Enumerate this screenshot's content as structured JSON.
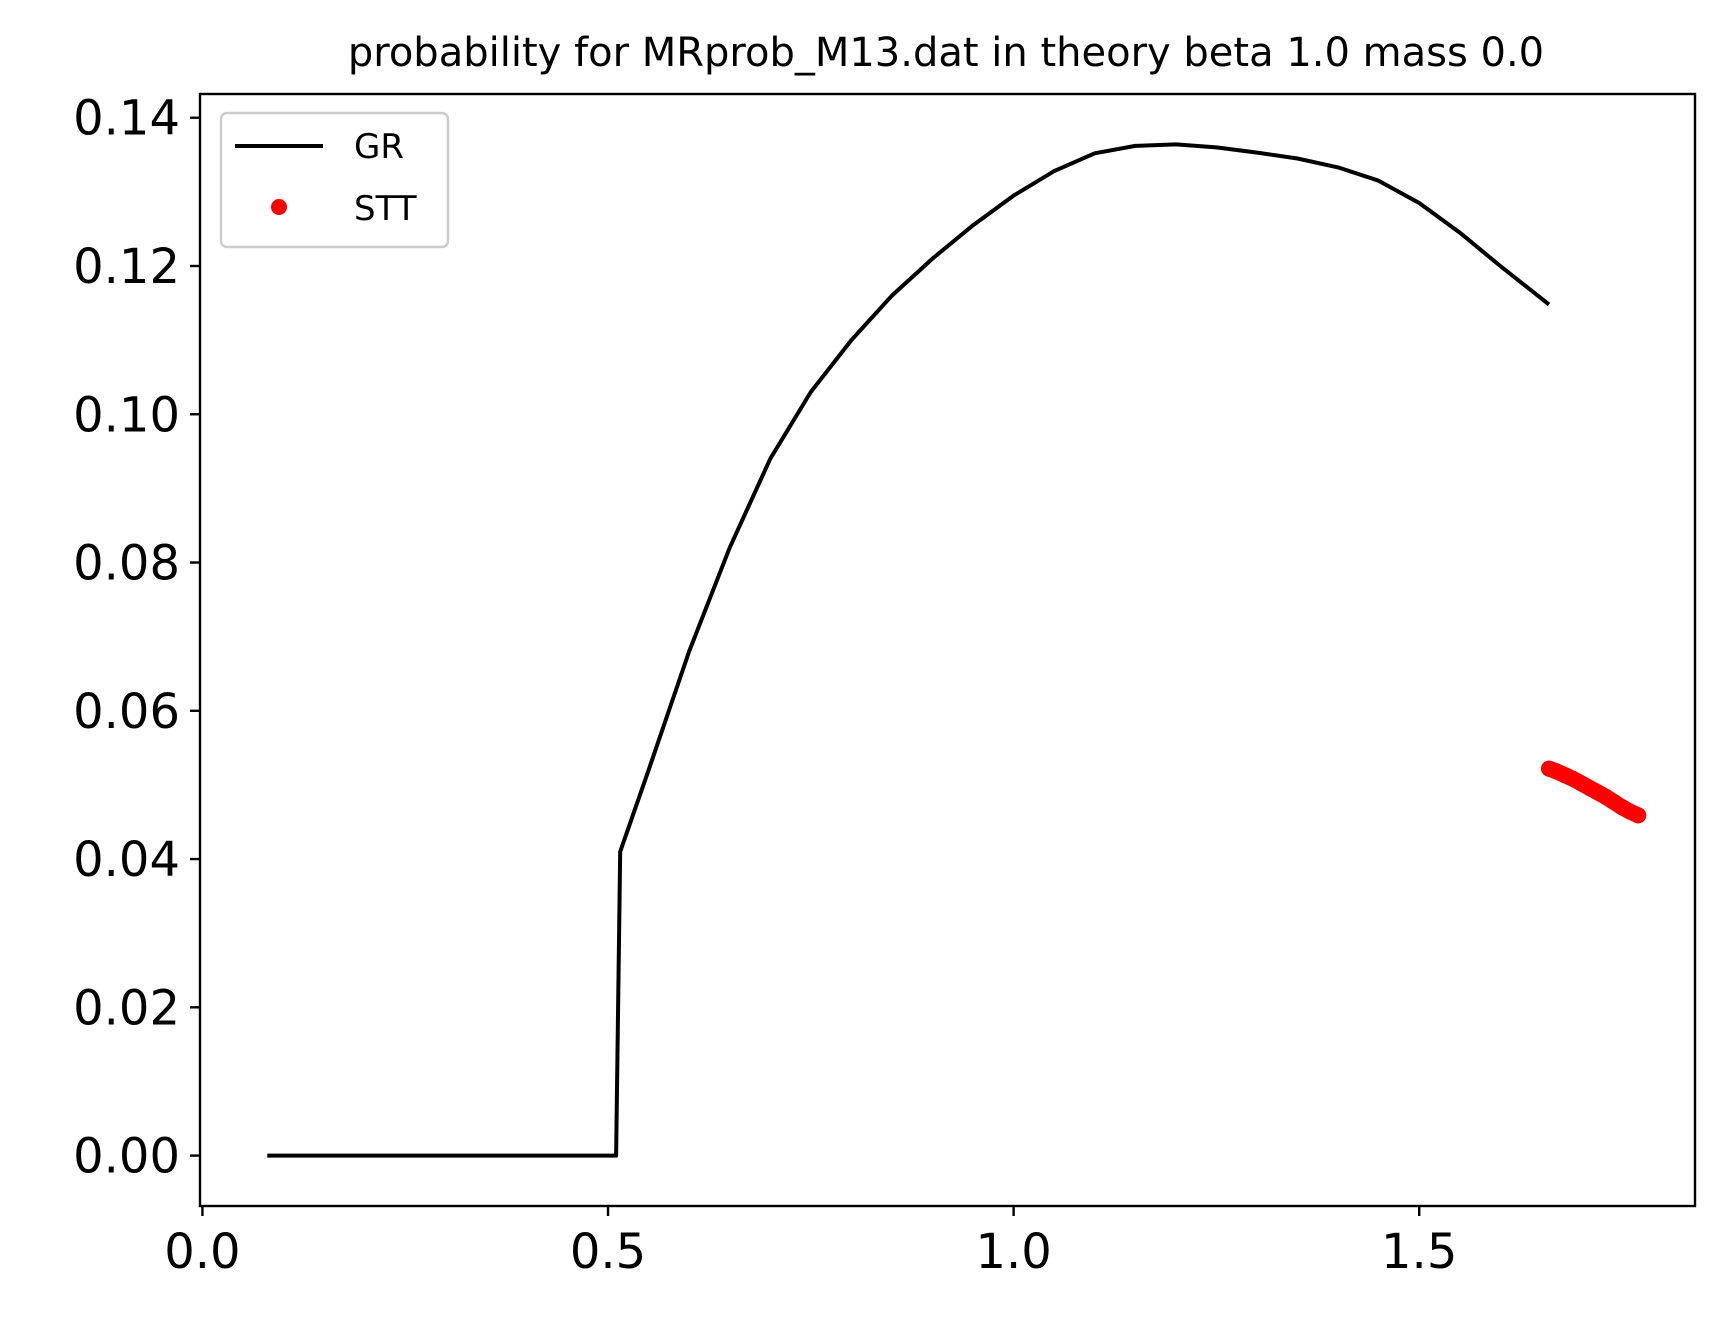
{
  "chart_data": {
    "type": "line",
    "title": "probability for MRprob_M13.dat in theory beta 1.0 mass 0.0",
    "xlabel": "",
    "ylabel": "",
    "xlim": [
      -0.003,
      1.84
    ],
    "ylim": [
      -0.0068,
      0.1432
    ],
    "xticks": [
      0.0,
      0.5,
      1.0,
      1.5
    ],
    "xtick_labels": [
      "0.0",
      "0.5",
      "1.0",
      "1.5"
    ],
    "yticks": [
      0.0,
      0.02,
      0.04,
      0.06,
      0.08,
      0.1,
      0.12,
      0.14
    ],
    "ytick_labels": [
      "0.00",
      "0.02",
      "0.04",
      "0.06",
      "0.08",
      "0.10",
      "0.12",
      "0.14"
    ],
    "grid": false,
    "legend": "top-left",
    "series": [
      {
        "name": "GR",
        "style": "line",
        "color": "#000000",
        "x": [
          0.08,
          0.3,
          0.51,
          0.515,
          0.55,
          0.6,
          0.65,
          0.7,
          0.75,
          0.8,
          0.85,
          0.9,
          0.95,
          1.0,
          1.05,
          1.1,
          1.15,
          1.2,
          1.25,
          1.3,
          1.35,
          1.4,
          1.45,
          1.5,
          1.55,
          1.6,
          1.66
        ],
        "y": [
          0.0,
          0.0,
          0.0,
          0.041,
          0.052,
          0.068,
          0.082,
          0.094,
          0.103,
          0.11,
          0.116,
          0.121,
          0.1255,
          0.1295,
          0.1328,
          0.1352,
          0.1362,
          0.1364,
          0.136,
          0.1353,
          0.1345,
          0.1333,
          0.1315,
          0.1285,
          0.1245,
          0.12,
          0.1148
        ]
      },
      {
        "name": "STT",
        "style": "points",
        "color": "#ff0000",
        "x": [
          1.66,
          1.67,
          1.68,
          1.69,
          1.7,
          1.71,
          1.72,
          1.73,
          1.74,
          1.75,
          1.76,
          1.77
        ],
        "y": [
          0.0522,
          0.0518,
          0.0513,
          0.0508,
          0.0502,
          0.0496,
          0.049,
          0.0484,
          0.0477,
          0.047,
          0.0464,
          0.0459
        ]
      }
    ]
  }
}
